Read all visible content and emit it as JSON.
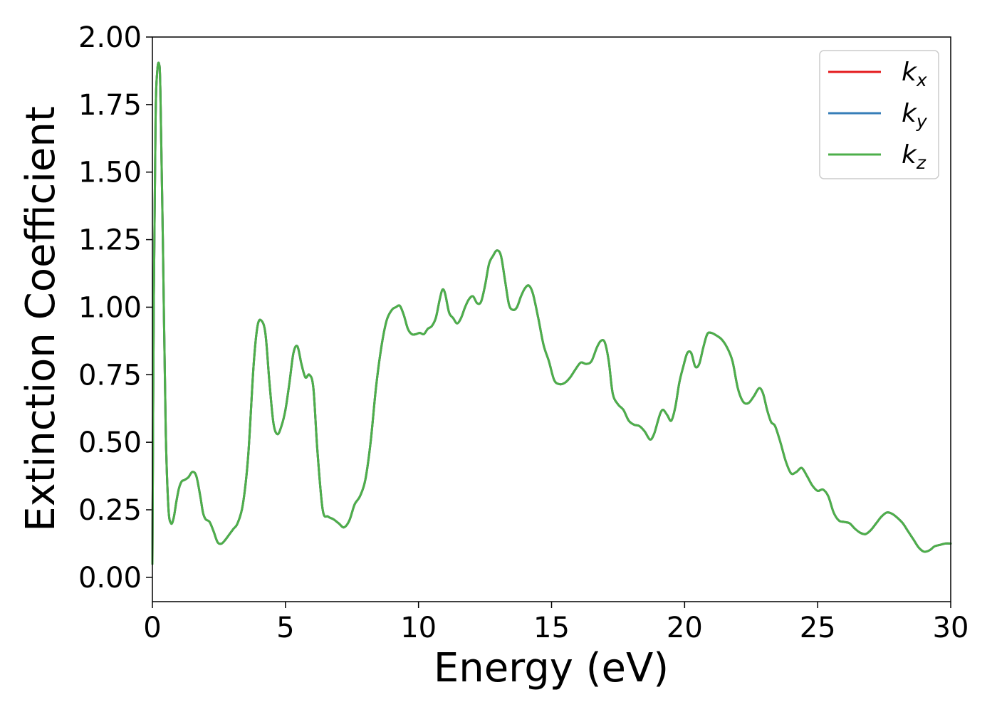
{
  "chart_data": {
    "type": "line",
    "title": "",
    "xlabel": "Energy (eV)",
    "ylabel": "Extinction Coefficient",
    "xlim": [
      0,
      30
    ],
    "ylim": [
      -0.09,
      2.0
    ],
    "xticks": [
      0,
      5,
      10,
      15,
      20,
      25,
      30
    ],
    "xtick_labels": [
      "0",
      "5",
      "10",
      "15",
      "20",
      "25",
      "30"
    ],
    "yticks": [
      0.0,
      0.25,
      0.5,
      0.75,
      1.0,
      1.25,
      1.5,
      1.75,
      2.0
    ],
    "ytick_labels": [
      "0.00",
      "0.25",
      "0.50",
      "0.75",
      "1.00",
      "1.25",
      "1.50",
      "1.75",
      "2.00"
    ],
    "grid": false,
    "legend_position": "top-right",
    "series": [
      {
        "name": "k",
        "subscript": "x",
        "color": "#e41a1c"
      },
      {
        "name": "k",
        "subscript": "y",
        "color": "#377eb8"
      },
      {
        "name": "k",
        "subscript": "z",
        "color": "#4daf4a"
      }
    ],
    "x": [
      0,
      0.05,
      0.12,
      0.18,
      0.25,
      0.3,
      0.4,
      0.5,
      0.6,
      0.7,
      0.8,
      0.9,
      1.0,
      1.1,
      1.2,
      1.35,
      1.5,
      1.65,
      1.8,
      1.9,
      2.0,
      2.15,
      2.3,
      2.45,
      2.6,
      2.75,
      2.9,
      3.05,
      3.2,
      3.4,
      3.6,
      3.8,
      3.95,
      4.1,
      4.25,
      4.4,
      4.55,
      4.7,
      4.85,
      5.0,
      5.15,
      5.3,
      5.45,
      5.6,
      5.75,
      5.9,
      6.05,
      6.2,
      6.4,
      6.6,
      6.8,
      7.0,
      7.2,
      7.4,
      7.6,
      7.8,
      8.0,
      8.2,
      8.4,
      8.6,
      8.8,
      9.0,
      9.15,
      9.3,
      9.45,
      9.6,
      9.75,
      9.9,
      10.05,
      10.2,
      10.35,
      10.5,
      10.65,
      10.8,
      10.9,
      11.0,
      11.15,
      11.3,
      11.45,
      11.6,
      11.75,
      11.9,
      12.05,
      12.2,
      12.35,
      12.5,
      12.65,
      12.8,
      12.95,
      13.1,
      13.25,
      13.4,
      13.55,
      13.7,
      13.85,
      14.0,
      14.15,
      14.3,
      14.5,
      14.7,
      14.9,
      15.1,
      15.3,
      15.5,
      15.7,
      15.9,
      16.1,
      16.3,
      16.5,
      16.7,
      16.85,
      17.0,
      17.15,
      17.3,
      17.5,
      17.7,
      17.9,
      18.1,
      18.3,
      18.5,
      18.7,
      18.85,
      19.0,
      19.1,
      19.2,
      19.35,
      19.5,
      19.65,
      19.8,
      19.95,
      20.1,
      20.25,
      20.4,
      20.55,
      20.7,
      20.85,
      21.0,
      21.2,
      21.4,
      21.6,
      21.8,
      22.0,
      22.2,
      22.4,
      22.6,
      22.8,
      22.95,
      23.1,
      23.25,
      23.4,
      23.6,
      23.8,
      24.0,
      24.2,
      24.4,
      24.6,
      24.8,
      25.0,
      25.2,
      25.4,
      25.6,
      25.8,
      26.0,
      26.2,
      26.4,
      26.6,
      26.8,
      27.0,
      27.2,
      27.4,
      27.6,
      27.8,
      28.0,
      28.2,
      28.4,
      28.6,
      28.8,
      29.0,
      29.2,
      29.4,
      29.6,
      29.8,
      30.0
    ],
    "y": [
      0.05,
      1.0,
      1.7,
      1.87,
      1.9,
      1.8,
      1.2,
      0.55,
      0.26,
      0.2,
      0.22,
      0.28,
      0.33,
      0.355,
      0.36,
      0.37,
      0.39,
      0.375,
      0.3,
      0.24,
      0.215,
      0.205,
      0.17,
      0.13,
      0.125,
      0.14,
      0.16,
      0.18,
      0.2,
      0.27,
      0.45,
      0.78,
      0.93,
      0.95,
      0.9,
      0.72,
      0.57,
      0.53,
      0.56,
      0.62,
      0.72,
      0.83,
      0.855,
      0.79,
      0.74,
      0.75,
      0.7,
      0.47,
      0.25,
      0.225,
      0.215,
      0.2,
      0.185,
      0.21,
      0.27,
      0.3,
      0.36,
      0.5,
      0.7,
      0.85,
      0.95,
      0.99,
      1.0,
      1.005,
      0.97,
      0.92,
      0.9,
      0.9,
      0.905,
      0.9,
      0.92,
      0.93,
      0.96,
      1.03,
      1.065,
      1.05,
      0.98,
      0.96,
      0.94,
      0.96,
      1.0,
      1.03,
      1.04,
      1.015,
      1.02,
      1.08,
      1.16,
      1.19,
      1.21,
      1.19,
      1.1,
      1.01,
      0.99,
      1.0,
      1.04,
      1.07,
      1.08,
      1.05,
      0.96,
      0.86,
      0.8,
      0.73,
      0.715,
      0.72,
      0.74,
      0.77,
      0.795,
      0.79,
      0.8,
      0.85,
      0.875,
      0.87,
      0.8,
      0.68,
      0.64,
      0.62,
      0.58,
      0.565,
      0.56,
      0.54,
      0.51,
      0.53,
      0.58,
      0.61,
      0.62,
      0.6,
      0.58,
      0.63,
      0.72,
      0.78,
      0.83,
      0.83,
      0.78,
      0.79,
      0.85,
      0.9,
      0.905,
      0.895,
      0.88,
      0.85,
      0.8,
      0.7,
      0.65,
      0.645,
      0.67,
      0.7,
      0.68,
      0.62,
      0.575,
      0.56,
      0.5,
      0.43,
      0.385,
      0.39,
      0.405,
      0.375,
      0.34,
      0.32,
      0.325,
      0.3,
      0.24,
      0.21,
      0.205,
      0.2,
      0.18,
      0.165,
      0.16,
      0.175,
      0.2,
      0.225,
      0.24,
      0.235,
      0.22,
      0.2,
      0.17,
      0.14,
      0.11,
      0.095,
      0.1,
      0.115,
      0.12,
      0.125,
      0.125
    ]
  }
}
